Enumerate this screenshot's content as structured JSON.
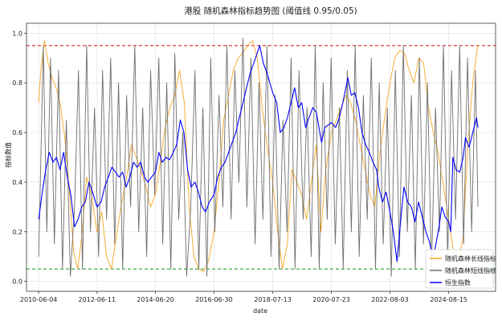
{
  "chart_data": {
    "type": "line",
    "title": "港股 随机森林指标趋势图 (阈值线 0.95/0.05)",
    "xlabel": "date",
    "ylabel": "指标数值",
    "x_domain": [
      "2010-01-01",
      "2026-03-31"
    ],
    "ylim": [
      -0.04,
      1.04
    ],
    "x_ticks": [
      "2010-06-04",
      "2012-06-11",
      "2014-06-20",
      "2016-06-30",
      "2018-07-13",
      "2020-07-23",
      "2022-08-03",
      "2024-08-15"
    ],
    "y_ticks": [
      0.0,
      0.2,
      0.4,
      0.6,
      0.8,
      1.0
    ],
    "y_tick_labels": [
      "0.0",
      "0.2",
      "0.4",
      "0.6",
      "0.8",
      "1.0"
    ],
    "grid": true,
    "legend_position": "bottom-right",
    "thresholds": [
      {
        "value": 0.95,
        "color": "#d62728",
        "style": "dashed"
      },
      {
        "value": 0.05,
        "color": "#2ca02c",
        "style": "dashed"
      }
    ],
    "series": [
      {
        "name": "随机森林长线指标",
        "color": "#f5a623",
        "x": [
          "2010-06-04",
          "2010-07-01",
          "2010-08-15",
          "2010-10-01",
          "2010-11-20",
          "2011-01-10",
          "2011-03-01",
          "2011-05-01",
          "2011-07-01",
          "2011-08-20",
          "2011-10-10",
          "2011-12-01",
          "2012-02-01",
          "2012-04-01",
          "2012-06-11",
          "2012-08-10",
          "2012-10-10",
          "2012-12-10",
          "2013-02-10",
          "2013-04-10",
          "2013-06-20",
          "2013-08-20",
          "2013-10-20",
          "2013-12-20",
          "2014-02-20",
          "2014-04-20",
          "2014-06-20",
          "2014-08-20",
          "2014-10-20",
          "2014-12-20",
          "2015-02-20",
          "2015-04-20",
          "2015-06-20",
          "2015-08-20",
          "2015-10-20",
          "2015-12-20",
          "2016-02-20",
          "2016-04-20",
          "2016-06-30",
          "2016-08-30",
          "2016-10-30",
          "2016-12-30",
          "2017-02-28",
          "2017-04-30",
          "2017-06-30",
          "2017-08-30",
          "2017-10-30",
          "2017-12-30",
          "2018-03-01",
          "2018-05-01",
          "2018-07-13",
          "2018-09-13",
          "2018-11-13",
          "2019-01-13",
          "2019-03-13",
          "2019-05-13",
          "2019-07-13",
          "2019-09-13",
          "2019-11-13",
          "2020-01-13",
          "2020-03-13",
          "2020-05-13",
          "2020-07-23",
          "2020-09-23",
          "2020-11-23",
          "2021-01-23",
          "2021-03-23",
          "2021-05-23",
          "2021-07-23",
          "2021-09-23",
          "2021-11-23",
          "2022-01-23",
          "2022-03-23",
          "2022-05-23",
          "2022-08-03",
          "2022-10-03",
          "2022-12-03",
          "2023-02-03",
          "2023-04-03",
          "2023-06-03",
          "2023-08-03",
          "2023-10-03",
          "2023-12-03",
          "2024-02-03",
          "2024-04-03",
          "2024-06-03",
          "2024-08-15",
          "2024-10-15",
          "2024-12-15",
          "2025-02-15",
          "2025-04-15",
          "2025-06-15",
          "2025-08-15"
        ],
        "values": [
          0.72,
          0.85,
          0.97,
          0.88,
          0.82,
          0.78,
          0.72,
          0.58,
          0.35,
          0.12,
          0.05,
          0.18,
          0.42,
          0.35,
          0.2,
          0.28,
          0.1,
          0.05,
          0.18,
          0.3,
          0.42,
          0.55,
          0.5,
          0.45,
          0.38,
          0.3,
          0.35,
          0.48,
          0.62,
          0.7,
          0.75,
          0.85,
          0.72,
          0.3,
          0.1,
          0.05,
          0.04,
          0.08,
          0.2,
          0.4,
          0.65,
          0.75,
          0.85,
          0.9,
          0.92,
          0.95,
          0.97,
          0.9,
          0.7,
          0.55,
          0.4,
          0.2,
          0.05,
          0.15,
          0.45,
          0.4,
          0.35,
          0.25,
          0.4,
          0.55,
          0.2,
          0.45,
          0.6,
          0.65,
          0.7,
          0.75,
          0.72,
          0.65,
          0.55,
          0.45,
          0.35,
          0.3,
          0.5,
          0.65,
          0.8,
          0.9,
          0.93,
          0.92,
          0.85,
          0.8,
          0.9,
          0.88,
          0.7,
          0.6,
          0.52,
          0.4,
          0.25,
          0.12,
          0.08,
          0.18,
          0.55,
          0.8,
          0.95
        ]
      },
      {
        "name": "随机森林短线指标",
        "color": "#6e6e6e",
        "x": [
          "2010-06-04",
          "2010-08-01",
          "2010-09-15",
          "2010-11-01",
          "2010-12-20",
          "2011-02-10",
          "2011-04-01",
          "2011-05-20",
          "2011-07-10",
          "2011-09-01",
          "2011-10-20",
          "2011-12-10",
          "2012-02-01",
          "2012-03-20",
          "2012-05-10",
          "2012-07-01",
          "2012-08-20",
          "2012-10-10",
          "2012-12-01",
          "2013-01-20",
          "2013-03-10",
          "2013-05-01",
          "2013-06-20",
          "2013-08-10",
          "2013-10-01",
          "2013-11-20",
          "2014-01-10",
          "2014-03-01",
          "2014-04-20",
          "2014-06-10",
          "2014-08-01",
          "2014-09-20",
          "2014-11-10",
          "2015-01-01",
          "2015-02-20",
          "2015-04-10",
          "2015-06-01",
          "2015-07-20",
          "2015-09-10",
          "2015-11-01",
          "2015-12-20",
          "2016-02-10",
          "2016-04-01",
          "2016-05-20",
          "2016-07-10",
          "2016-09-01",
          "2016-10-20",
          "2016-12-10",
          "2017-02-01",
          "2017-03-20",
          "2017-05-10",
          "2017-07-01",
          "2017-08-20",
          "2017-10-10",
          "2017-12-01",
          "2018-01-20",
          "2018-03-10",
          "2018-05-01",
          "2018-06-20",
          "2018-08-10",
          "2018-10-01",
          "2018-11-20",
          "2019-01-10",
          "2019-03-01",
          "2019-04-20",
          "2019-06-10",
          "2019-08-01",
          "2019-09-20",
          "2019-11-10",
          "2020-01-01",
          "2020-02-20",
          "2020-04-10",
          "2020-06-01",
          "2020-07-20",
          "2020-09-10",
          "2020-11-01",
          "2020-12-20",
          "2021-02-10",
          "2021-04-01",
          "2021-05-20",
          "2021-07-10",
          "2021-09-01",
          "2021-10-20",
          "2021-12-10",
          "2022-02-01",
          "2022-03-20",
          "2022-05-10",
          "2022-07-01",
          "2022-08-20",
          "2022-10-10",
          "2022-12-01",
          "2023-01-20",
          "2023-03-10",
          "2023-05-01",
          "2023-06-20",
          "2023-08-10",
          "2023-10-01",
          "2023-11-20",
          "2024-01-10",
          "2024-03-01",
          "2024-04-20",
          "2024-06-10",
          "2024-08-01",
          "2024-09-20",
          "2024-11-10",
          "2025-01-01",
          "2025-02-20",
          "2025-04-10",
          "2025-06-01",
          "2025-07-20",
          "2025-08-20"
        ],
        "values": [
          0.1,
          0.95,
          0.2,
          0.9,
          0.15,
          0.85,
          0.05,
          0.65,
          0.02,
          0.3,
          0.85,
          0.05,
          0.95,
          0.2,
          0.7,
          0.1,
          0.85,
          0.25,
          0.9,
          0.15,
          0.8,
          0.05,
          0.75,
          0.3,
          0.95,
          0.2,
          0.7,
          0.1,
          0.85,
          0.35,
          0.9,
          0.15,
          0.8,
          0.05,
          0.92,
          0.25,
          0.6,
          0.02,
          0.3,
          0.85,
          0.05,
          0.7,
          0.02,
          0.9,
          0.2,
          0.75,
          0.3,
          0.95,
          0.25,
          0.85,
          0.4,
          0.98,
          0.3,
          0.9,
          0.15,
          0.8,
          0.25,
          0.95,
          0.1,
          0.75,
          0.05,
          0.65,
          0.2,
          0.9,
          0.05,
          0.85,
          0.25,
          0.7,
          0.1,
          0.95,
          0.05,
          0.8,
          0.25,
          0.9,
          0.15,
          0.7,
          0.05,
          0.85,
          0.2,
          0.95,
          0.1,
          0.75,
          0.25,
          0.9,
          0.05,
          0.8,
          0.15,
          0.7,
          0.02,
          0.85,
          0.1,
          0.95,
          0.2,
          0.75,
          0.05,
          0.9,
          0.15,
          0.8,
          0.05,
          0.7,
          0.2,
          0.95,
          0.1,
          0.85,
          0.25,
          0.95,
          0.15,
          0.9,
          0.2,
          0.85,
          0.3
        ]
      },
      {
        "name": "恒生指数",
        "color": "#0000ff",
        "x": [
          "2010-06-04",
          "2010-07-15",
          "2010-09-01",
          "2010-10-15",
          "2010-12-01",
          "2011-01-15",
          "2011-03-01",
          "2011-04-15",
          "2011-06-01",
          "2011-07-15",
          "2011-09-01",
          "2011-10-15",
          "2011-12-01",
          "2012-01-15",
          "2012-03-01",
          "2012-04-15",
          "2012-06-11",
          "2012-08-01",
          "2012-09-15",
          "2012-11-01",
          "2012-12-15",
          "2013-02-01",
          "2013-03-15",
          "2013-05-01",
          "2013-06-15",
          "2013-08-01",
          "2013-09-15",
          "2013-11-01",
          "2013-12-15",
          "2014-02-01",
          "2014-03-15",
          "2014-05-01",
          "2014-06-20",
          "2014-08-01",
          "2014-09-15",
          "2014-11-01",
          "2014-12-15",
          "2015-02-01",
          "2015-03-15",
          "2015-04-30",
          "2015-06-15",
          "2015-08-01",
          "2015-09-15",
          "2015-11-01",
          "2015-12-15",
          "2016-02-01",
          "2016-03-15",
          "2016-05-01",
          "2016-06-30",
          "2016-08-15",
          "2016-10-01",
          "2016-11-15",
          "2017-01-01",
          "2017-02-15",
          "2017-04-01",
          "2017-05-15",
          "2017-07-01",
          "2017-08-15",
          "2017-10-01",
          "2017-11-15",
          "2018-01-29",
          "2018-03-15",
          "2018-05-01",
          "2018-07-13",
          "2018-09-01",
          "2018-10-15",
          "2018-12-01",
          "2019-01-15",
          "2019-03-01",
          "2019-04-15",
          "2019-06-01",
          "2019-07-15",
          "2019-09-01",
          "2019-10-15",
          "2019-12-01",
          "2020-01-15",
          "2020-03-20",
          "2020-05-01",
          "2020-07-23",
          "2020-09-15",
          "2020-11-01",
          "2020-12-15",
          "2021-02-17",
          "2021-04-01",
          "2021-05-15",
          "2021-07-01",
          "2021-08-15",
          "2021-10-01",
          "2021-11-15",
          "2022-01-01",
          "2022-02-15",
          "2022-03-15",
          "2022-05-01",
          "2022-06-15",
          "2022-08-03",
          "2022-09-15",
          "2022-10-31",
          "2022-12-15",
          "2023-01-27",
          "2023-03-15",
          "2023-05-01",
          "2023-06-15",
          "2023-08-01",
          "2023-09-15",
          "2023-11-01",
          "2023-12-15",
          "2024-01-22",
          "2024-03-01",
          "2024-04-15",
          "2024-05-20",
          "2024-07-01",
          "2024-08-15",
          "2024-09-10",
          "2024-10-07",
          "2024-11-15",
          "2025-01-01",
          "2025-02-15",
          "2025-03-15",
          "2025-05-01",
          "2025-06-15",
          "2025-08-01",
          "2025-08-20"
        ],
        "values": [
          0.25,
          0.35,
          0.45,
          0.52,
          0.48,
          0.5,
          0.45,
          0.52,
          0.42,
          0.35,
          0.22,
          0.25,
          0.3,
          0.32,
          0.4,
          0.36,
          0.3,
          0.32,
          0.38,
          0.42,
          0.46,
          0.44,
          0.42,
          0.44,
          0.38,
          0.42,
          0.48,
          0.46,
          0.48,
          0.42,
          0.4,
          0.42,
          0.44,
          0.52,
          0.48,
          0.5,
          0.49,
          0.52,
          0.55,
          0.65,
          0.6,
          0.45,
          0.38,
          0.4,
          0.36,
          0.3,
          0.28,
          0.32,
          0.35,
          0.42,
          0.46,
          0.48,
          0.52,
          0.56,
          0.6,
          0.66,
          0.72,
          0.78,
          0.84,
          0.88,
          0.95,
          0.88,
          0.84,
          0.76,
          0.72,
          0.6,
          0.62,
          0.66,
          0.72,
          0.78,
          0.7,
          0.72,
          0.62,
          0.66,
          0.7,
          0.68,
          0.56,
          0.62,
          0.64,
          0.62,
          0.66,
          0.72,
          0.82,
          0.75,
          0.76,
          0.7,
          0.6,
          0.55,
          0.52,
          0.48,
          0.45,
          0.38,
          0.32,
          0.36,
          0.28,
          0.2,
          0.08,
          0.24,
          0.38,
          0.32,
          0.3,
          0.24,
          0.32,
          0.26,
          0.2,
          0.16,
          0.1,
          0.14,
          0.22,
          0.3,
          0.26,
          0.24,
          0.2,
          0.5,
          0.45,
          0.44,
          0.5,
          0.58,
          0.54,
          0.6,
          0.66,
          0.62
        ]
      }
    ]
  }
}
